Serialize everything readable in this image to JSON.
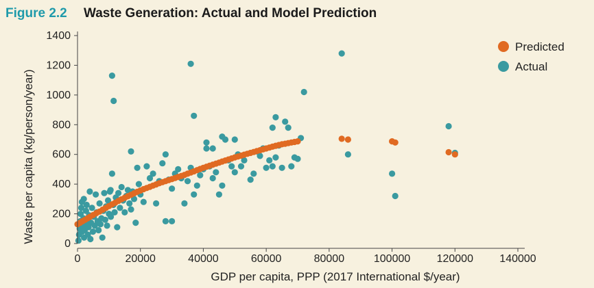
{
  "figure": {
    "number": "Figure 2.2",
    "title": "Waste Generation: Actual and Model Prediction"
  },
  "chart_data": {
    "type": "scatter",
    "title": "Waste Generation: Actual and Model Prediction",
    "xlabel": "GDP per capita, PPP (2017 International $/year)",
    "ylabel": "Waste per capita (kg/person/year)",
    "xlim": [
      0,
      140000
    ],
    "ylim": [
      0,
      1400
    ],
    "xticks": [
      0,
      20000,
      40000,
      60000,
      80000,
      100000,
      120000,
      140000
    ],
    "yticks": [
      0,
      200,
      400,
      600,
      800,
      1000,
      1200,
      1400
    ],
    "legend_position": "top-right",
    "colors": {
      "Predicted": "#e06a22",
      "Actual": "#3a9aa0"
    },
    "series": [
      {
        "name": "Predicted",
        "points": [
          [
            0,
            130
          ],
          [
            800,
            140
          ],
          [
            1600,
            150
          ],
          [
            2400,
            160
          ],
          [
            3200,
            170
          ],
          [
            4000,
            180
          ],
          [
            5000,
            192
          ],
          [
            6000,
            205
          ],
          [
            7000,
            215
          ],
          [
            8000,
            228
          ],
          [
            9000,
            240
          ],
          [
            10000,
            252
          ],
          [
            11000,
            264
          ],
          [
            12000,
            275
          ],
          [
            13000,
            287
          ],
          [
            14000,
            298
          ],
          [
            15000,
            308
          ],
          [
            16000,
            318
          ],
          [
            17000,
            328
          ],
          [
            18000,
            338
          ],
          [
            19000,
            348
          ],
          [
            20000,
            357
          ],
          [
            21000,
            366
          ],
          [
            22000,
            374
          ],
          [
            23000,
            382
          ],
          [
            24000,
            390
          ],
          [
            25000,
            398
          ],
          [
            26000,
            406
          ],
          [
            27000,
            413
          ],
          [
            28000,
            420
          ],
          [
            29000,
            427
          ],
          [
            30000,
            434
          ],
          [
            31000,
            441
          ],
          [
            32000,
            448
          ],
          [
            33000,
            455
          ],
          [
            34000,
            462
          ],
          [
            35000,
            470
          ],
          [
            36000,
            478
          ],
          [
            37000,
            486
          ],
          [
            38000,
            494
          ],
          [
            39000,
            502
          ],
          [
            40000,
            510
          ],
          [
            41000,
            517
          ],
          [
            42000,
            524
          ],
          [
            43000,
            531
          ],
          [
            44000,
            538
          ],
          [
            45000,
            545
          ],
          [
            46000,
            552
          ],
          [
            47000,
            559
          ],
          [
            48000,
            566
          ],
          [
            49000,
            573
          ],
          [
            50000,
            580
          ],
          [
            51000,
            586
          ],
          [
            52000,
            592
          ],
          [
            53000,
            598
          ],
          [
            54000,
            604
          ],
          [
            55000,
            610
          ],
          [
            56000,
            616
          ],
          [
            57000,
            622
          ],
          [
            58000,
            628
          ],
          [
            59000,
            634
          ],
          [
            60000,
            640
          ],
          [
            61000,
            646
          ],
          [
            62000,
            652
          ],
          [
            63000,
            658
          ],
          [
            64000,
            663
          ],
          [
            65000,
            668
          ],
          [
            66000,
            672
          ],
          [
            67000,
            676
          ],
          [
            68000,
            680
          ],
          [
            69000,
            684
          ],
          [
            70000,
            688
          ],
          [
            84000,
            705
          ],
          [
            86000,
            700
          ],
          [
            100000,
            688
          ],
          [
            101000,
            680
          ],
          [
            118000,
            615
          ],
          [
            120000,
            600
          ]
        ]
      },
      {
        "name": "Actual",
        "points": [
          [
            300,
            20
          ],
          [
            500,
            60
          ],
          [
            700,
            100
          ],
          [
            900,
            150
          ],
          [
            1000,
            200
          ],
          [
            1200,
            240
          ],
          [
            1400,
            280
          ],
          [
            1500,
            80
          ],
          [
            1700,
            120
          ],
          [
            1900,
            170
          ],
          [
            2000,
            300
          ],
          [
            2100,
            40
          ],
          [
            2300,
            90
          ],
          [
            2500,
            130
          ],
          [
            2700,
            220
          ],
          [
            2900,
            260
          ],
          [
            3100,
            160
          ],
          [
            3300,
            60
          ],
          [
            3500,
            110
          ],
          [
            3700,
            190
          ],
          [
            3900,
            350
          ],
          [
            4100,
            30
          ],
          [
            4300,
            140
          ],
          [
            4600,
            240
          ],
          [
            4900,
            80
          ],
          [
            5200,
            180
          ],
          [
            5500,
            120
          ],
          [
            5800,
            330
          ],
          [
            6100,
            210
          ],
          [
            6400,
            150
          ],
          [
            6700,
            90
          ],
          [
            7000,
            270
          ],
          [
            7300,
            130
          ],
          [
            7600,
            170
          ],
          [
            7900,
            40
          ],
          [
            8200,
            220
          ],
          [
            8500,
            340
          ],
          [
            8800,
            160
          ],
          [
            9100,
            250
          ],
          [
            9400,
            120
          ],
          [
            9700,
            290
          ],
          [
            10000,
            200
          ],
          [
            10300,
            350
          ],
          [
            10600,
            180
          ],
          [
            11000,
            470
          ],
          [
            11400,
            260
          ],
          [
            11800,
            210
          ],
          [
            12200,
            310
          ],
          [
            12600,
            110
          ],
          [
            13000,
            340
          ],
          [
            13500,
            240
          ],
          [
            14000,
            380
          ],
          [
            14500,
            290
          ],
          [
            15000,
            210
          ],
          [
            15500,
            320
          ],
          [
            16000,
            360
          ],
          [
            16500,
            270
          ],
          [
            17000,
            230
          ],
          [
            17500,
            350
          ],
          [
            18000,
            300
          ],
          [
            18500,
            140
          ],
          [
            19000,
            510
          ],
          [
            19500,
            400
          ],
          [
            20000,
            330
          ],
          [
            21000,
            280
          ],
          [
            22000,
            520
          ],
          [
            23000,
            440
          ],
          [
            24000,
            470
          ],
          [
            25000,
            270
          ],
          [
            26000,
            420
          ],
          [
            27000,
            540
          ],
          [
            28000,
            600
          ],
          [
            29000,
            430
          ],
          [
            30000,
            370
          ],
          [
            31000,
            470
          ],
          [
            32000,
            500
          ],
          [
            33000,
            440
          ],
          [
            34000,
            270
          ],
          [
            35000,
            420
          ],
          [
            36000,
            510
          ],
          [
            37000,
            330
          ],
          [
            38000,
            390
          ],
          [
            39000,
            460
          ],
          [
            40000,
            500
          ],
          [
            41000,
            640
          ],
          [
            42000,
            520
          ],
          [
            43000,
            440
          ],
          [
            44000,
            480
          ],
          [
            45000,
            330
          ],
          [
            46000,
            390
          ],
          [
            47000,
            700
          ],
          [
            48000,
            560
          ],
          [
            49000,
            520
          ],
          [
            50000,
            480
          ],
          [
            51000,
            600
          ],
          [
            52000,
            520
          ],
          [
            53000,
            560
          ],
          [
            55000,
            430
          ],
          [
            56000,
            470
          ],
          [
            57000,
            620
          ],
          [
            58000,
            590
          ],
          [
            59000,
            640
          ],
          [
            60000,
            510
          ],
          [
            61000,
            560
          ],
          [
            62000,
            520
          ],
          [
            63000,
            580
          ],
          [
            64000,
            660
          ],
          [
            65000,
            510
          ],
          [
            66000,
            820
          ],
          [
            67000,
            780
          ],
          [
            68000,
            520
          ],
          [
            69000,
            580
          ],
          [
            70000,
            570
          ],
          [
            71000,
            710
          ],
          [
            72000,
            1020
          ],
          [
            36000,
            1210
          ],
          [
            11000,
            1130
          ],
          [
            11500,
            960
          ],
          [
            37000,
            860
          ],
          [
            41000,
            680
          ],
          [
            43000,
            640
          ],
          [
            46000,
            720
          ],
          [
            50000,
            700
          ],
          [
            62000,
            780
          ],
          [
            63000,
            850
          ],
          [
            84000,
            1280
          ],
          [
            86000,
            600
          ],
          [
            100000,
            470
          ],
          [
            101000,
            320
          ],
          [
            118000,
            790
          ],
          [
            120000,
            610
          ],
          [
            17000,
            620
          ],
          [
            28000,
            150
          ],
          [
            30000,
            150
          ],
          [
            9000,
            240
          ],
          [
            10500,
            360
          ]
        ]
      }
    ]
  }
}
